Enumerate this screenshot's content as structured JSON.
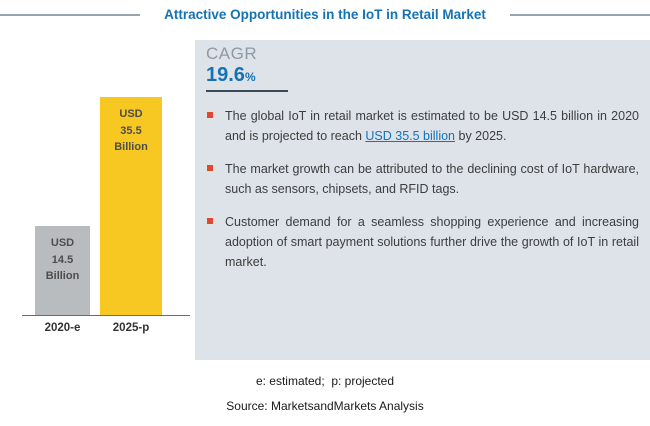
{
  "title": "Attractive Opportunities in the IoT in Retail Market",
  "cagr": {
    "label": "CAGR",
    "value": "19.6",
    "unit": "%"
  },
  "chart_data": {
    "type": "bar",
    "categories": [
      "2020-e",
      "2025-p"
    ],
    "values": [
      14.5,
      35.5
    ],
    "value_unit": "USD Billion",
    "bar_labels": [
      "USD\n14.5\nBillion",
      "USD\n35.5\nBillion"
    ],
    "bar_colors": [
      "#b9bcbe",
      "#f7c722"
    ],
    "ylim": [
      0,
      40
    ],
    "grid": false,
    "legend": false,
    "title": "Attractive Opportunities in the IoT in Retail Market"
  },
  "bullets": [
    {
      "pre": "The global IoT in retail market is estimated to be USD 14.5 billion in 2020 and is projected to reach ",
      "link": "USD 35.5 billion",
      "post": " by 2025."
    },
    {
      "text": "The market growth can be attributed to the declining cost of IoT hardware, such as sensors, chipsets, and RFID tags."
    },
    {
      "text": "Customer demand for a seamless shopping experience and increasing adoption of smart payment solutions further drive the growth of IoT in retail market."
    }
  ],
  "footer": {
    "note": "e: estimated;  p: projected",
    "source": "Source: MarketsandMarkets Analysis"
  },
  "colors": {
    "accent_blue": "#1473b4",
    "bullet_red": "#e0472e",
    "panel_bg": "#dee3e9",
    "bar_gray": "#b9bcbe",
    "bar_yellow": "#f7c722",
    "cagr_underline": "#3a4a57"
  }
}
